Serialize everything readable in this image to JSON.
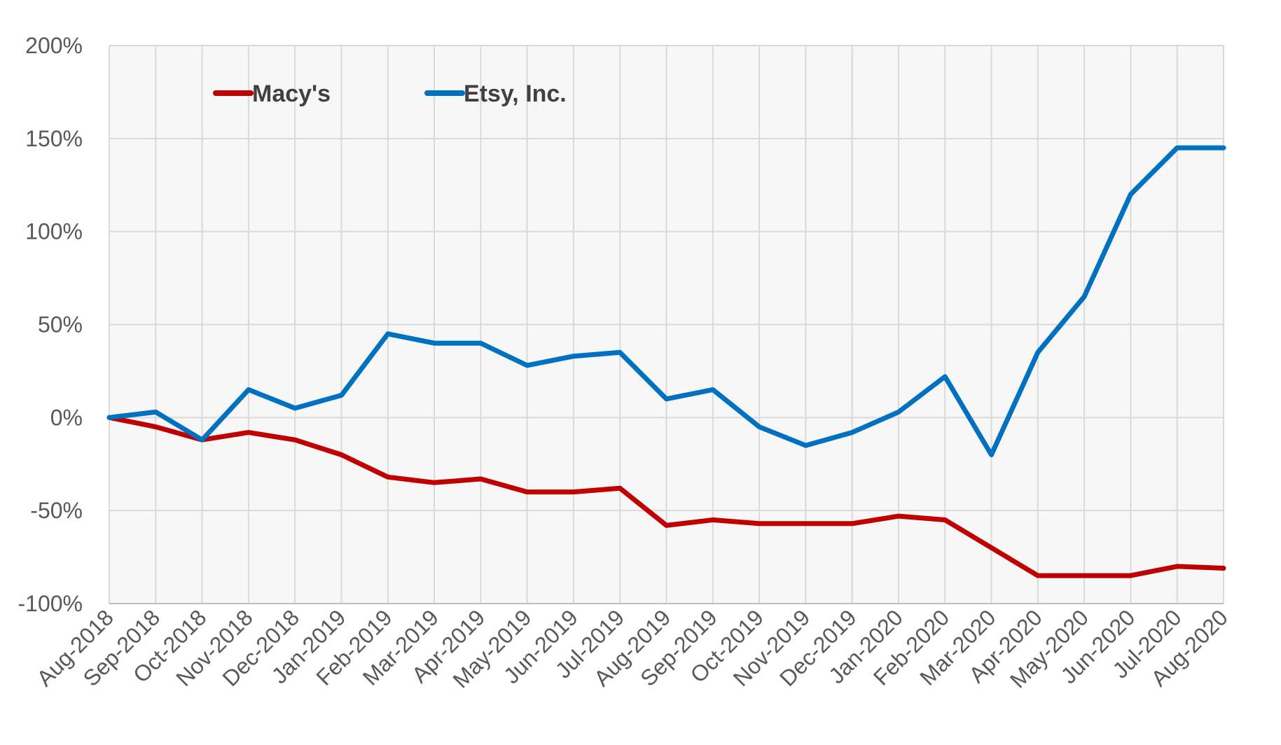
{
  "chart_data": {
    "type": "line",
    "x": [
      "Aug-2018",
      "Sep-2018",
      "Oct-2018",
      "Nov-2018",
      "Dec-2018",
      "Jan-2019",
      "Feb-2019",
      "Mar-2019",
      "Apr-2019",
      "May-2019",
      "Jun-2019",
      "Jul-2019",
      "Aug-2019",
      "Sep-2019",
      "Oct-2019",
      "Nov-2019",
      "Dec-2019",
      "Jan-2020",
      "Feb-2020",
      "Mar-2020",
      "Apr-2020",
      "May-2020",
      "Jun-2020",
      "Jul-2020",
      "Aug-2020"
    ],
    "series": [
      {
        "name": "Macy's",
        "color": "#c00000",
        "values": [
          0,
          -5,
          -12,
          -8,
          -12,
          -20,
          -32,
          -35,
          -33,
          -40,
          -40,
          -38,
          -58,
          -55,
          -57,
          -57,
          -57,
          -53,
          -55,
          -70,
          -85,
          -85,
          -85,
          -80,
          -81
        ]
      },
      {
        "name": "Etsy, Inc.",
        "color": "#0070c0",
        "values": [
          0,
          3,
          -12,
          15,
          5,
          12,
          45,
          40,
          40,
          28,
          33,
          35,
          10,
          15,
          -5,
          -15,
          -8,
          3,
          22,
          -20,
          35,
          65,
          120,
          145,
          145
        ]
      }
    ],
    "ylim": [
      -100,
      200
    ],
    "yticks": [
      {
        "value": -100,
        "label": "-100%"
      },
      {
        "value": -50,
        "label": "-50%"
      },
      {
        "value": 0,
        "label": "0%"
      },
      {
        "value": 50,
        "label": "50%"
      },
      {
        "value": 100,
        "label": "100%"
      },
      {
        "value": 150,
        "label": "150%"
      },
      {
        "value": 200,
        "label": "200%"
      }
    ],
    "grid": true,
    "legend": "top-left"
  }
}
